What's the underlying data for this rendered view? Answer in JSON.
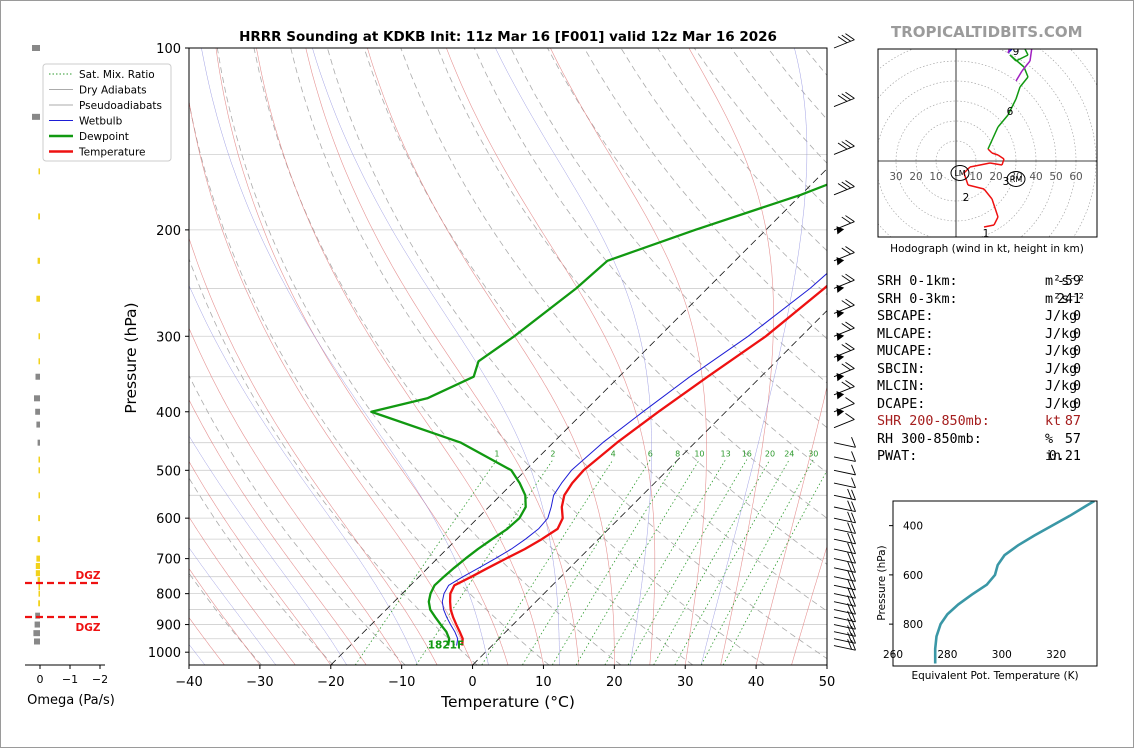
{
  "title": "HRRR Sounding at KDKB Init: 11z Mar 16 [F001] valid 12z Mar 16 2026",
  "brand": "TROPICALTIDBITS.COM",
  "legend": [
    "Sat. Mix. Ratio",
    "Dry Adiabats",
    "Pseudoadiabats",
    "Wetbulb",
    "Dewpoint",
    "Temperature"
  ],
  "colors": {
    "temperature": "#ee1111",
    "dewpoint": "#119911",
    "wetbulb": "#1d1dd6",
    "theta_e": "#3a97a6",
    "shr": "#a51e1e",
    "dgz": "#ee1111"
  },
  "chart_data": [
    {
      "type": "line",
      "name": "skewt",
      "title": "HRRR Sounding at KDKB Init: 11z Mar 16 [F001] valid 12z Mar 16 2026",
      "xlabel": "Temperature (°C)",
      "ylabel": "Pressure (hPa)",
      "xlim": [
        -40,
        50
      ],
      "ylim": [
        1050,
        100
      ],
      "yscale": "log",
      "xticks": [
        "−40",
        "−30",
        "−20",
        "−10",
        "0",
        "10",
        "20",
        "30",
        "40",
        "50"
      ],
      "yticks": [
        "100",
        "200",
        "300",
        "400",
        "500",
        "600",
        "700",
        "800",
        "900",
        "1000"
      ],
      "mixing_ratio_labels": [
        "1",
        "2",
        "4",
        "6",
        "8",
        "10",
        "13",
        "16",
        "20",
        "24",
        "30",
        "36"
      ],
      "surface_label": "1821F",
      "series": [
        {
          "name": "Temperature",
          "p": [
            975,
            950,
            925,
            900,
            875,
            850,
            825,
            800,
            775,
            750,
            725,
            700,
            675,
            650,
            625,
            600,
            575,
            550,
            525,
            500,
            450,
            400,
            350,
            300,
            250,
            225,
            200,
            175,
            150,
            125,
            100
          ],
          "t": [
            -4.2,
            -5.1,
            -6.5,
            -8.0,
            -9.5,
            -10.9,
            -12.1,
            -13.2,
            -13.8,
            -12.6,
            -11.5,
            -10.3,
            -9.0,
            -8.0,
            -7.2,
            -8.0,
            -9.7,
            -11.0,
            -11.6,
            -11.8,
            -11.0,
            -9.5,
            -7.5,
            -5.0,
            -3.5,
            -3.0,
            0.5,
            6.0,
            8.0,
            9.0,
            13.5
          ]
        },
        {
          "name": "Dewpoint",
          "p": [
            975,
            950,
            925,
            900,
            875,
            850,
            825,
            800,
            775,
            750,
            725,
            700,
            675,
            650,
            625,
            600,
            575,
            550,
            525,
            500,
            450,
            400,
            380,
            350,
            330,
            300,
            250,
            225,
            200,
            175,
            150,
            125,
            100
          ],
          "t": [
            -6.2,
            -7.0,
            -8.4,
            -10.2,
            -12.0,
            -13.8,
            -15.1,
            -16.0,
            -16.6,
            -16.5,
            -16.3,
            -16.0,
            -15.6,
            -15.0,
            -14.3,
            -14.1,
            -14.8,
            -16.5,
            -19.0,
            -22.0,
            -33.0,
            -50.0,
            -44.0,
            -40.5,
            -42.0,
            -40.5,
            -38.5,
            -38.0,
            -30.0,
            -20.0,
            -11.0,
            -4.0,
            2.0
          ]
        },
        {
          "name": "Wetbulb",
          "p": [
            975,
            950,
            925,
            900,
            875,
            850,
            825,
            800,
            775,
            750,
            725,
            700,
            675,
            650,
            625,
            600,
            575,
            550,
            525,
            500,
            450,
            400,
            350,
            300,
            250,
            225,
            200,
            175,
            150,
            125,
            100
          ],
          "t": [
            -5.0,
            -5.8,
            -7.2,
            -8.8,
            -10.4,
            -11.9,
            -13.2,
            -14.1,
            -14.6,
            -13.8,
            -12.8,
            -11.8,
            -10.9,
            -10.3,
            -9.9,
            -10.1,
            -11.2,
            -12.5,
            -13.1,
            -13.5,
            -13.0,
            -11.7,
            -10.0,
            -7.5,
            -5.5,
            -5.0,
            -1.0,
            5.0,
            7.5,
            8.5,
            13.0
          ]
        }
      ]
    },
    {
      "type": "line",
      "name": "hodograph",
      "caption": "Hodograph (wind in kt, height in km)",
      "ring_labels": [
        "30",
        "20",
        "10",
        "10",
        "20",
        "30",
        "40",
        "50",
        "60"
      ],
      "height_labels": [
        "1",
        "2",
        "3",
        "6",
        "9"
      ],
      "storm_labels": [
        "LM",
        "RM"
      ],
      "points": [
        [
          14,
          -33
        ],
        [
          19,
          -32
        ],
        [
          21,
          -28
        ],
        [
          18,
          -19
        ],
        [
          14,
          -14
        ],
        [
          6,
          -12
        ],
        [
          4,
          -6
        ],
        [
          7,
          -3
        ],
        [
          17,
          -1
        ],
        [
          23,
          -2
        ],
        [
          24,
          1
        ],
        [
          21,
          3
        ],
        [
          18,
          4
        ],
        [
          16,
          6
        ],
        [
          21,
          17
        ],
        [
          26,
          23
        ],
        [
          30,
          31
        ],
        [
          32,
          37
        ],
        [
          36,
          42
        ],
        [
          34,
          47
        ],
        [
          27,
          53
        ],
        [
          30,
          50
        ],
        [
          36,
          53
        ],
        [
          34,
          57
        ],
        [
          37,
          59
        ],
        [
          30,
          58
        ],
        [
          26,
          54
        ],
        [
          27,
          57
        ],
        [
          30,
          63
        ],
        [
          35,
          66
        ],
        [
          37,
          64
        ],
        [
          38,
          57
        ],
        [
          37,
          50
        ],
        [
          33,
          45
        ],
        [
          30,
          40
        ]
      ],
      "lm": [
        2,
        -6
      ],
      "rm": [
        30,
        -9
      ]
    },
    {
      "type": "line",
      "name": "theta_e",
      "xlabel": "Equivalent Pot. Temperature (K)",
      "ylabel": "Pressure (hPa)",
      "xlim": [
        260,
        335
      ],
      "ylim": [
        970,
        300
      ],
      "xticks": [
        "260",
        "280",
        "300",
        "320"
      ],
      "yticks": [
        "400",
        "600",
        "800"
      ],
      "p": [
        960,
        900,
        850,
        800,
        760,
        720,
        680,
        640,
        600,
        560,
        520,
        480,
        440,
        400,
        360,
        320,
        300
      ],
      "theta": [
        275.5,
        275.5,
        276,
        277.5,
        280,
        284,
        289,
        294.5,
        297.5,
        298.5,
        301,
        306,
        312,
        318.5,
        325,
        331,
        334
      ]
    },
    {
      "type": "bar",
      "name": "omega",
      "xlabel": "Omega (Pa/s)",
      "xticks": [
        "0",
        "−1",
        "−2"
      ],
      "dgz_label": "DGZ",
      "p": [
        100,
        130,
        160,
        190,
        225,
        260,
        300,
        330,
        350,
        380,
        400,
        420,
        450,
        480,
        500,
        550,
        600,
        650,
        700,
        720,
        740,
        760,
        780,
        800,
        830,
        870,
        900,
        930,
        960
      ],
      "omega": [
        -0.15,
        -0.08,
        0.04,
        0.06,
        0.08,
        0.12,
        0.04,
        0.05,
        0.15,
        0.2,
        0.16,
        0.12,
        0.08,
        0.04,
        0.04,
        0.05,
        0.06,
        0.08,
        0.12,
        0.14,
        0.14,
        0.08,
        0.03,
        0.05,
        0.06,
        0.16,
        0.18,
        0.22,
        0.2
      ]
    }
  ],
  "params": {
    "rows": [
      {
        "label": "SRH 0-1km:",
        "value": "-59",
        "unit": "m²s⁻²"
      },
      {
        "label": "SRH 0-3km:",
        "value": "241",
        "unit": "m²s⁻²"
      },
      {
        "label": "SBCAPE:",
        "value": "0",
        "unit": "J/kg"
      },
      {
        "label": "MLCAPE:",
        "value": "0",
        "unit": "J/kg"
      },
      {
        "label": "MUCAPE:",
        "value": "0",
        "unit": "J/kg"
      },
      {
        "label": "SBCIN:",
        "value": "0",
        "unit": "J/kg"
      },
      {
        "label": "MLCIN:",
        "value": "0",
        "unit": "J/kg"
      },
      {
        "label": "DCAPE:",
        "value": "0",
        "unit": "J/kg"
      },
      {
        "label": "SHR 200-850mb:",
        "value": "87",
        "unit": "kt"
      },
      {
        "label": "RH 300-850mb:",
        "value": "57",
        "unit": "%"
      },
      {
        "label": "PWAT:",
        "value": "0.21",
        "unit": "in"
      }
    ]
  }
}
